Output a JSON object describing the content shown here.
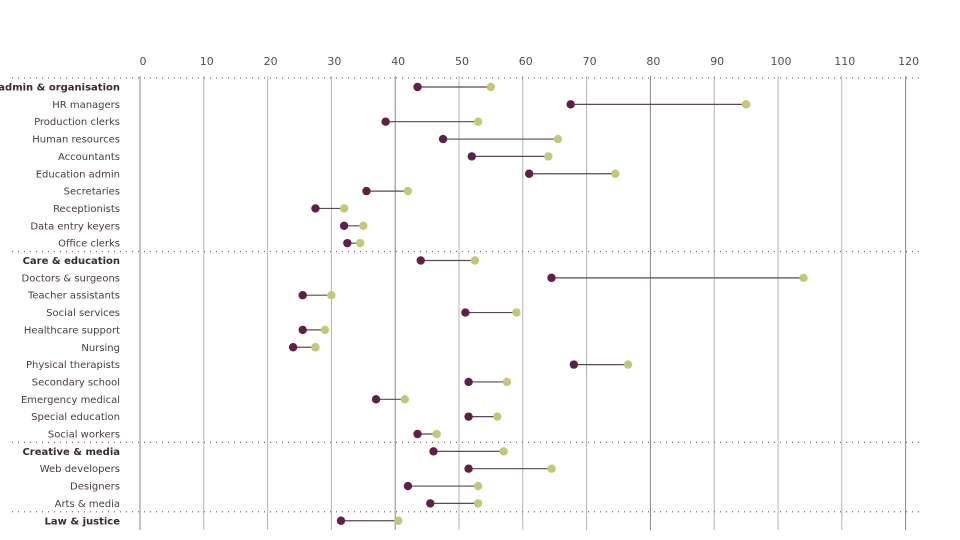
{
  "chart_data": {
    "type": "dumbbell",
    "title": "",
    "xlabel": "",
    "ylabel": "",
    "xlim": [
      0,
      120
    ],
    "x_ticks": [
      0,
      10,
      20,
      30,
      40,
      50,
      60,
      70,
      80,
      90,
      100,
      110,
      120
    ],
    "legend": "none",
    "colors": {
      "start": "#5e2046",
      "end": "#c2c77a",
      "line_up": "#5a4a52",
      "line_down": "#c9c4c6",
      "grid": "#b8b0b4",
      "grid_major": "#8a8288"
    },
    "series": [
      {
        "name": "start",
        "color": "#5e2046"
      },
      {
        "name": "end",
        "color": "#c2c77a"
      }
    ],
    "rows": [
      {
        "label": "admin & organisation",
        "group": true,
        "start": 43.5,
        "end": 55
      },
      {
        "label": "HR managers",
        "group": false,
        "start": 67.5,
        "end": 95
      },
      {
        "label": "Production clerks",
        "group": false,
        "start": 38.5,
        "end": 53
      },
      {
        "label": "Human resources",
        "group": false,
        "start": 47.5,
        "end": 65.5
      },
      {
        "label": "Accountants",
        "group": false,
        "start": 52,
        "end": 64
      },
      {
        "label": "Education admin",
        "group": false,
        "start": 61,
        "end": 74.5
      },
      {
        "label": "Secretaries",
        "group": false,
        "start": 35.5,
        "end": 42
      },
      {
        "label": "Receptionists",
        "group": false,
        "start": 27.5,
        "end": 32
      },
      {
        "label": "Data entry keyers",
        "group": false,
        "start": 32,
        "end": 35
      },
      {
        "label": "Office clerks",
        "group": false,
        "start": 32.5,
        "end": 34.5
      },
      {
        "label": "Care & education",
        "group": true,
        "start": 44,
        "end": 52.5
      },
      {
        "label": "Doctors & surgeons",
        "group": false,
        "start": 64.5,
        "end": 104
      },
      {
        "label": "Teacher assistants",
        "group": false,
        "start": 25.5,
        "end": 30
      },
      {
        "label": "Social services",
        "group": false,
        "start": 51,
        "end": 59
      },
      {
        "label": "Healthcare support",
        "group": false,
        "start": 25.5,
        "end": 29
      },
      {
        "label": "Nursing",
        "group": false,
        "start": 24,
        "end": 27.5
      },
      {
        "label": "Physical therapists",
        "group": false,
        "start": 68,
        "end": 76.5
      },
      {
        "label": "Secondary school",
        "group": false,
        "start": 51.5,
        "end": 57.5
      },
      {
        "label": "Emergency medical",
        "group": false,
        "start": 37,
        "end": 41.5
      },
      {
        "label": "Special education",
        "group": false,
        "start": 51.5,
        "end": 56
      },
      {
        "label": "Social workers",
        "group": false,
        "start": 43.5,
        "end": 46.5
      },
      {
        "label": "Creative & media",
        "group": true,
        "start": 46,
        "end": 57
      },
      {
        "label": "Web developers",
        "group": false,
        "start": 51.5,
        "end": 64.5
      },
      {
        "label": "Designers",
        "group": false,
        "start": 42,
        "end": 53
      },
      {
        "label": "Arts & media",
        "group": false,
        "start": 45.5,
        "end": 53
      },
      {
        "label": "Law & justice",
        "group": true,
        "start": 31.5,
        "end": 40.5
      }
    ]
  }
}
